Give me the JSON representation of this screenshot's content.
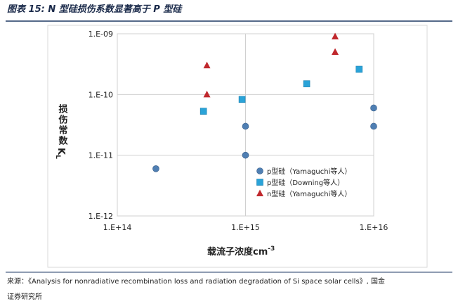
{
  "header": {
    "title": "图表 15: N 型硅损伤系数显著高于 P 型硅"
  },
  "chart_data": {
    "type": "scatter",
    "ylabel": "损伤常数",
    "ylabel_symbol": "K",
    "ylabel_subscript": "L",
    "xlabel": "载流子浓度cm",
    "xlabel_superscript": "-3",
    "xscale": "log",
    "yscale": "log",
    "grid": true,
    "legend": "lower right",
    "xlim": [
      100000000000000.0,
      1e+16
    ],
    "xticks": [
      {
        "value": 100000000000000.0,
        "label": "1.E+14"
      },
      {
        "value": 1000000000000000.0,
        "label": "1.E+15"
      },
      {
        "value": 1e+16,
        "label": "1.E+16"
      }
    ],
    "ylim": [
      1e-12,
      1e-09
    ],
    "yticks": [
      {
        "value": 1e-12,
        "label": "1.E-12"
      },
      {
        "value": 1e-11,
        "label": "1.E-11"
      },
      {
        "value": 1e-10,
        "label": "1.E-10"
      },
      {
        "value": 1e-09,
        "label": "1.E-09"
      }
    ],
    "series": [
      {
        "name": "p型硅（Yamaguchi等人）",
        "marker": "circle",
        "color": "#4f7fb3",
        "x": [
          200000000000000.0,
          1000000000000000.0,
          1000000000000000.0,
          1e+16,
          1e+16
        ],
        "values": [
          6e-12,
          3e-11,
          1e-11,
          6e-11,
          3e-11
        ]
      },
      {
        "name": "p型硅（Downing等人）",
        "marker": "square",
        "color": "#2aa3d8",
        "x": [
          470000000000000.0,
          940000000000000.0,
          3000000000000000.0,
          7700000000000000.0
        ],
        "values": [
          5.3e-11,
          8.3e-11,
          1.5e-10,
          2.6e-10
        ]
      },
      {
        "name": "n型硅（Yamaguchi等人）",
        "marker": "triangle",
        "color": "#c0282d",
        "x": [
          500000000000000.0,
          500000000000000.0,
          5000000000000000.0,
          5000000000000000.0
        ],
        "values": [
          3e-10,
          1e-10,
          9e-10,
          5e-10
        ]
      }
    ]
  },
  "footer": {
    "source_line1": "来源：《Analysis for nonradiative recombination loss and radiation degradation of Si space solar cells》, 国金",
    "source_line2": "证券研究所"
  }
}
